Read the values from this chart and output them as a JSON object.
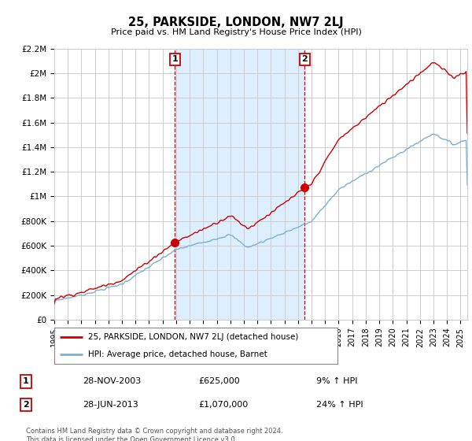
{
  "title": "25, PARKSIDE, LONDON, NW7 2LJ",
  "subtitle": "Price paid vs. HM Land Registry's House Price Index (HPI)",
  "legend_line1": "25, PARKSIDE, LONDON, NW7 2LJ (detached house)",
  "legend_line2": "HPI: Average price, detached house, Barnet",
  "annotation1_label": "1",
  "annotation1_date": "28-NOV-2003",
  "annotation1_price": "£625,000",
  "annotation1_hpi": "9% ↑ HPI",
  "annotation2_label": "2",
  "annotation2_date": "28-JUN-2013",
  "annotation2_price": "£1,070,000",
  "annotation2_hpi": "24% ↑ HPI",
  "footer": "Contains HM Land Registry data © Crown copyright and database right 2024.\nThis data is licensed under the Open Government Licence v3.0.",
  "red_color": "#cc0000",
  "blue_color": "#7ab0d4",
  "shade_color": "#ddeeff",
  "vline_color": "#cc0000",
  "grid_color": "#cccccc",
  "bg_color": "#ffffff",
  "ylim": [
    0,
    2200000
  ],
  "yticks": [
    0,
    200000,
    400000,
    600000,
    800000,
    1000000,
    1200000,
    1400000,
    1600000,
    1800000,
    2000000,
    2200000
  ],
  "ytick_labels": [
    "£0",
    "£200K",
    "£400K",
    "£600K",
    "£800K",
    "£1M",
    "£1.2M",
    "£1.4M",
    "£1.6M",
    "£1.8M",
    "£2M",
    "£2.2M"
  ],
  "xmin": 1995.0,
  "xmax": 2025.5,
  "vline1_x": 2003.91,
  "vline2_x": 2013.49,
  "sale1_y": 625000,
  "sale2_y": 1070000
}
